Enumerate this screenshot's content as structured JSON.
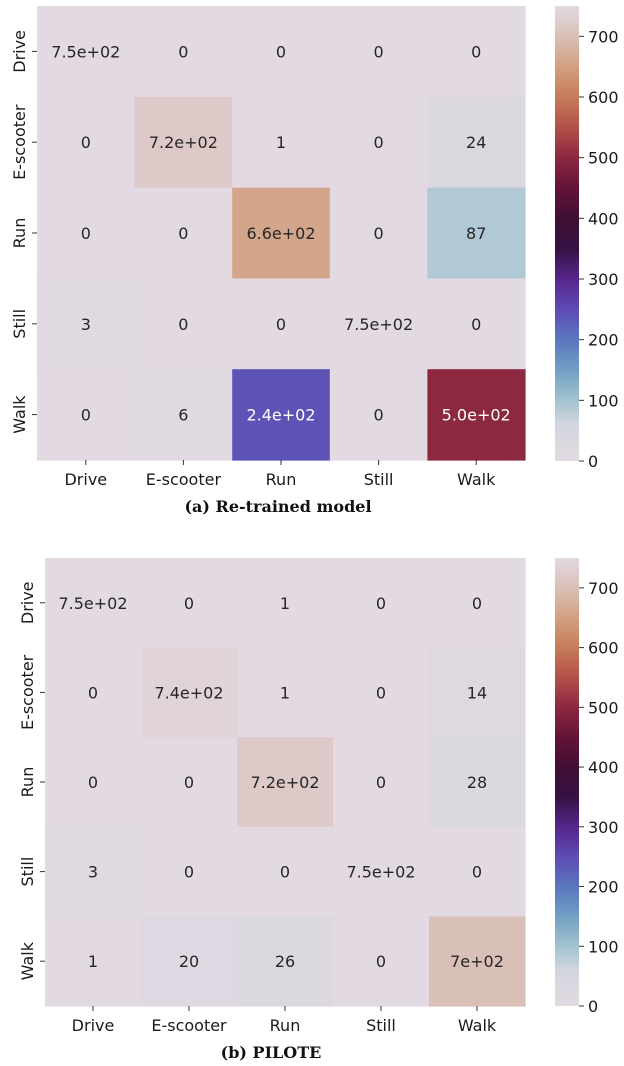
{
  "chart_data": [
    {
      "type": "heatmap",
      "title": "",
      "caption": "(a) Re-trained model",
      "x_categories": [
        "Drive",
        "E-scooter",
        "Run",
        "Still",
        "Walk"
      ],
      "y_categories": [
        "Drive",
        "E-scooter",
        "Run",
        "Still",
        "Walk"
      ],
      "values": [
        [
          750,
          0,
          0,
          0,
          0
        ],
        [
          0,
          720,
          1,
          0,
          24
        ],
        [
          0,
          0,
          660,
          0,
          87
        ],
        [
          3,
          0,
          0,
          750,
          0
        ],
        [
          0,
          6,
          240,
          0,
          500
        ]
      ],
      "labels": [
        [
          "7.5e+02",
          "0",
          "0",
          "0",
          "0"
        ],
        [
          "0",
          "7.2e+02",
          "1",
          "0",
          "24"
        ],
        [
          "0",
          "0",
          "6.6e+02",
          "0",
          "87"
        ],
        [
          "3",
          "0",
          "0",
          "7.5e+02",
          "0"
        ],
        [
          "0",
          "6",
          "2.4e+02",
          "0",
          "5.0e+02"
        ]
      ],
      "colorbar": {
        "range": [
          0,
          750
        ],
        "ticks": [
          "0",
          "100",
          "200",
          "300",
          "400",
          "500",
          "600",
          "700"
        ]
      }
    },
    {
      "type": "heatmap",
      "title": "",
      "caption": "(b) PILOTE",
      "x_categories": [
        "Drive",
        "E-scooter",
        "Run",
        "Still",
        "Walk"
      ],
      "y_categories": [
        "Drive",
        "E-scooter",
        "Run",
        "Still",
        "Walk"
      ],
      "values": [
        [
          750,
          0,
          1,
          0,
          0
        ],
        [
          0,
          740,
          1,
          0,
          14
        ],
        [
          0,
          0,
          720,
          0,
          28
        ],
        [
          3,
          0,
          0,
          750,
          0
        ],
        [
          1,
          20,
          26,
          0,
          700
        ]
      ],
      "labels": [
        [
          "7.5e+02",
          "0",
          "1",
          "0",
          "0"
        ],
        [
          "0",
          "7.4e+02",
          "1",
          "0",
          "14"
        ],
        [
          "0",
          "0",
          "7.2e+02",
          "0",
          "28"
        ],
        [
          "3",
          "0",
          "0",
          "7.5e+02",
          "0"
        ],
        [
          "1",
          "20",
          "26",
          "0",
          "7e+02"
        ]
      ],
      "colorbar": {
        "range": [
          0,
          750
        ],
        "ticks": [
          "0",
          "100",
          "200",
          "300",
          "400",
          "500",
          "600",
          "700"
        ]
      }
    }
  ],
  "colormap": "twilight_shifted_r"
}
